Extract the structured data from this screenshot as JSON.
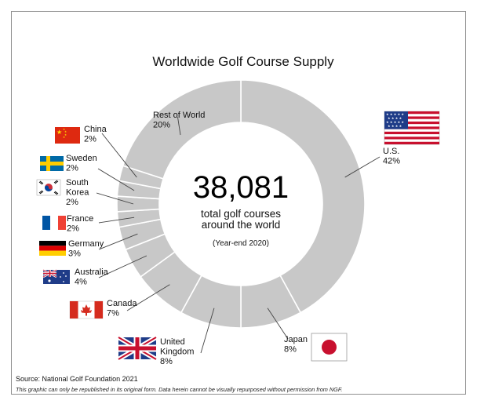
{
  "chart_data": {
    "type": "donut",
    "title": "Worldwide Golf Course Supply",
    "center": {
      "total": "38,081",
      "line1": "total golf courses",
      "line2": "around the world",
      "note": "(Year-end 2020)"
    },
    "slices": [
      {
        "label": [
          "U.S."
        ],
        "value": 42,
        "percent": "42%",
        "flag": "us-flag"
      },
      {
        "label": [
          "Japan"
        ],
        "value": 8,
        "percent": "8%",
        "flag": "japan-flag"
      },
      {
        "label": [
          "United",
          "Kingdom"
        ],
        "value": 8,
        "percent": "8%",
        "flag": "uk-flag"
      },
      {
        "label": [
          "Canada"
        ],
        "value": 7,
        "percent": "7%",
        "flag": "canada-flag"
      },
      {
        "label": [
          "Australia"
        ],
        "value": 4,
        "percent": "4%",
        "flag": "australia-flag"
      },
      {
        "label": [
          "Germany"
        ],
        "value": 3,
        "percent": "3%",
        "flag": "germany-flag"
      },
      {
        "label": [
          "France"
        ],
        "value": 2,
        "percent": "2%",
        "flag": "france-flag"
      },
      {
        "label": [
          "South",
          "Korea"
        ],
        "value": 2,
        "percent": "2%",
        "flag": "south-korea-flag"
      },
      {
        "label": [
          "Sweden"
        ],
        "value": 2,
        "percent": "2%",
        "flag": "sweden-flag"
      },
      {
        "label": [
          "China"
        ],
        "value": 2,
        "percent": "2%",
        "flag": "china-flag"
      },
      {
        "label": [
          "Rest of World"
        ],
        "value": 20,
        "percent": "20%",
        "flag": ""
      }
    ],
    "colors": {
      "slice": "#c8c8c8",
      "separator": "#ffffff",
      "leader": "#444444"
    }
  },
  "source": "Source: National Golf Foundation 2021",
  "disclaimer": "This graphic can only be republished in its original form. Data herein cannot be visually repurposed without permission from NGF."
}
